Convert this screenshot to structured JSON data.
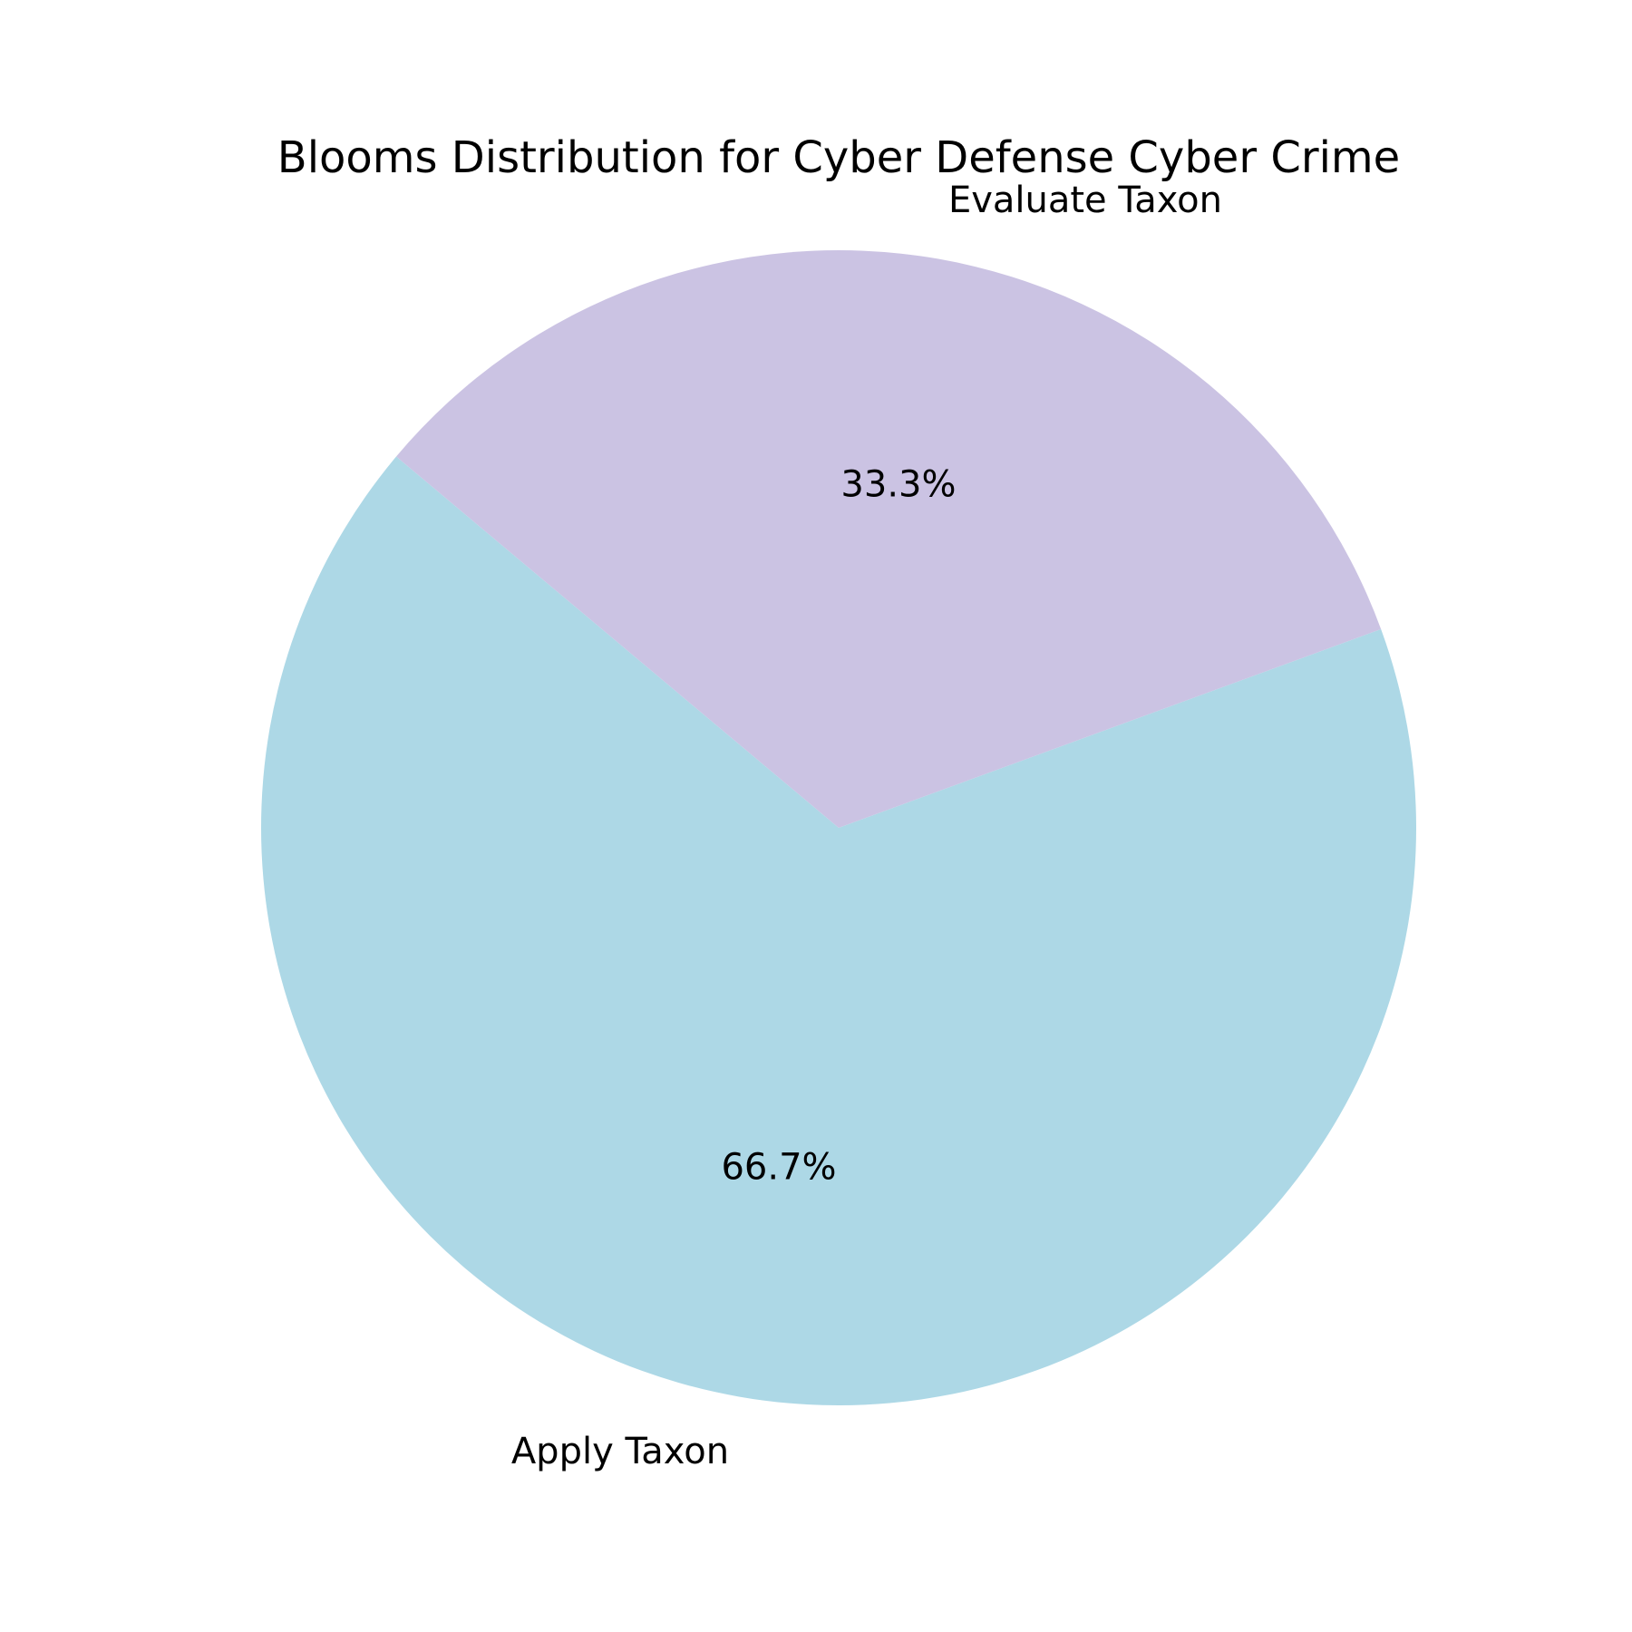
{
  "chart_data": {
    "type": "pie",
    "title": "Blooms Distribution for Cyber Defense Cyber Crime",
    "labels": [
      "Apply Taxon",
      "Evaluate Taxon"
    ],
    "values": [
      66.7,
      33.3
    ],
    "percent_labels": [
      "66.7%",
      "33.3%"
    ],
    "colors": [
      "#add8e6",
      "#cbc3e3"
    ],
    "start_angle_deg": 140,
    "direction": "counterclockwise",
    "legend": "none"
  }
}
